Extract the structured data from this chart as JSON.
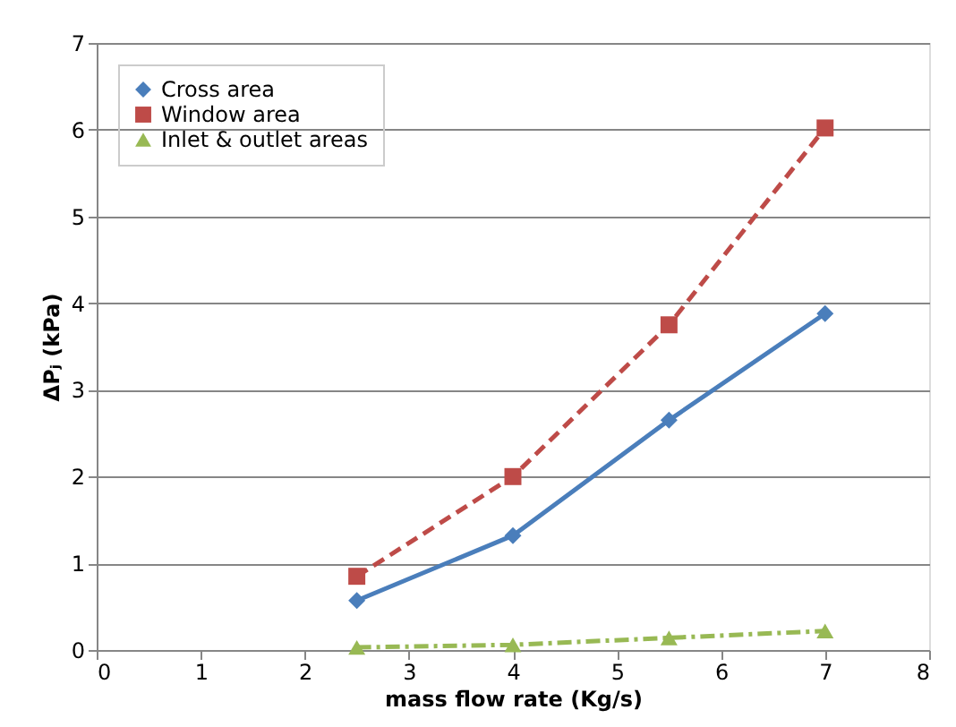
{
  "chart_data": {
    "type": "line",
    "xlabel": "mass flow rate (Kg/s)",
    "ylabel": "ΔPⱼ (kPa)",
    "x": [
      2.5,
      4,
      5.5,
      7
    ],
    "series": [
      {
        "name": "Cross area",
        "color": "#4a7ebb",
        "values": [
          0.57,
          1.32,
          2.65,
          3.88
        ],
        "marker": "diamond",
        "line_style": "solid"
      },
      {
        "name": "Window area",
        "color": "#be4b48",
        "values": [
          0.85,
          2.0,
          3.75,
          6.02
        ],
        "marker": "square",
        "line_style": "dashed"
      },
      {
        "name": "Inlet & outlet areas",
        "color": "#98b954",
        "values": [
          0.03,
          0.06,
          0.14,
          0.22
        ],
        "marker": "triangle",
        "line_style": "dashdot"
      }
    ],
    "xlim": [
      0,
      8
    ],
    "xticks": [
      0,
      1,
      2,
      3,
      4,
      5,
      6,
      7,
      8
    ],
    "ylim": [
      0,
      7
    ],
    "yticks": [
      0,
      1,
      2,
      3,
      4,
      5,
      6,
      7
    ],
    "grid": "y",
    "legend": "top left"
  }
}
